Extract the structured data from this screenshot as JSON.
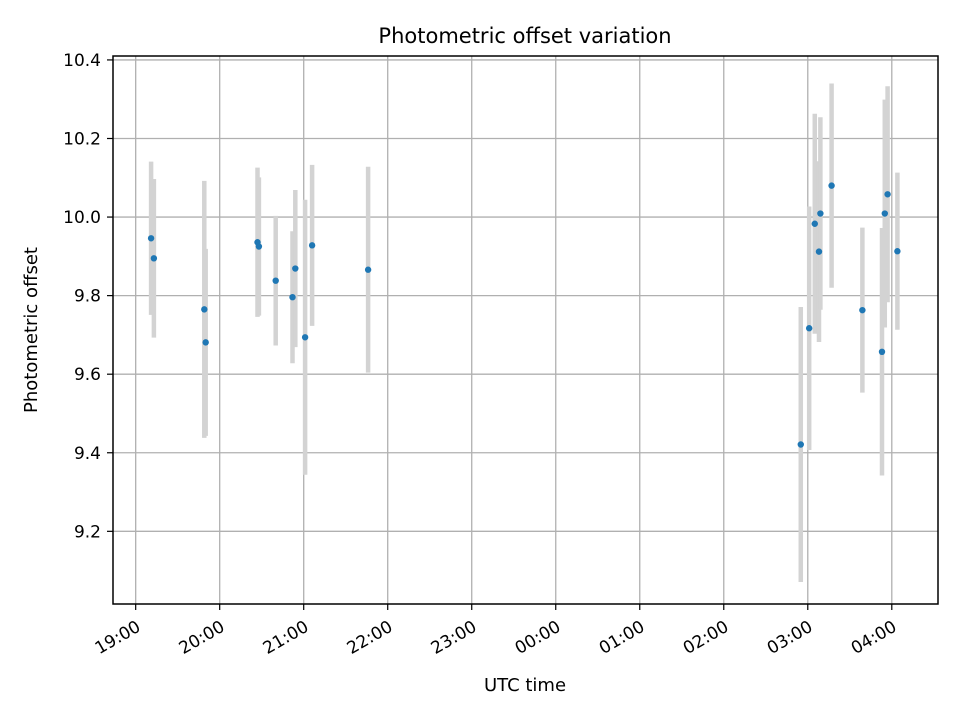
{
  "chart_data": {
    "type": "scatter",
    "title": "Photometric offset variation",
    "xlabel": "UTC time",
    "ylabel": "Photometric offset",
    "x_ticks": [
      "19:00",
      "20:00",
      "21:00",
      "22:00",
      "23:00",
      "00:00",
      "01:00",
      "02:00",
      "03:00",
      "04:00"
    ],
    "y_ticks": [
      "9.2",
      "9.4",
      "9.6",
      "9.8",
      "10.0",
      "10.2",
      "10.4"
    ],
    "x_tick_hours": [
      0,
      1,
      2,
      3,
      4,
      5,
      6,
      7,
      8,
      9
    ],
    "y_tick_values": [
      9.2,
      9.4,
      9.6,
      9.8,
      10.0,
      10.2,
      10.4
    ],
    "xlim_hours": [
      -0.27,
      9.55
    ],
    "ylim": [
      9.015,
      10.41
    ],
    "grid": true,
    "series": [
      {
        "marker_color": "#1f77b4",
        "errorbar_color": "#d3d3d3",
        "points": [
          {
            "t": "19:11",
            "y": 9.946,
            "err": 0.195
          },
          {
            "t": "19:13",
            "y": 9.895,
            "err": 0.202
          },
          {
            "t": "19:49",
            "y": 9.765,
            "err": 0.327
          },
          {
            "t": "19:50",
            "y": 9.681,
            "err": 0.238
          },
          {
            "t": "20:27",
            "y": 9.936,
            "err": 0.19
          },
          {
            "t": "20:28",
            "y": 9.925,
            "err": 0.176
          },
          {
            "t": "20:40",
            "y": 9.838,
            "err": 0.165
          },
          {
            "t": "20:52",
            "y": 9.796,
            "err": 0.168
          },
          {
            "t": "20:54",
            "y": 9.869,
            "err": 0.2
          },
          {
            "t": "21:01",
            "y": 9.694,
            "err": 0.35
          },
          {
            "t": "21:06",
            "y": 9.928,
            "err": 0.205
          },
          {
            "t": "21:46",
            "y": 9.866,
            "err": 0.262
          },
          {
            "t": "02:55",
            "y": 9.421,
            "err": 0.35
          },
          {
            "t": "03:01",
            "y": 9.717,
            "err": 0.31
          },
          {
            "t": "03:05",
            "y": 9.983,
            "err": 0.28
          },
          {
            "t": "03:08",
            "y": 9.912,
            "err": 0.23
          },
          {
            "t": "03:09",
            "y": 10.009,
            "err": 0.245
          },
          {
            "t": "03:17",
            "y": 10.08,
            "err": 0.26
          },
          {
            "t": "03:39",
            "y": 9.763,
            "err": 0.21
          },
          {
            "t": "03:53",
            "y": 9.657,
            "err": 0.315
          },
          {
            "t": "03:55",
            "y": 10.009,
            "err": 0.29
          },
          {
            "t": "03:57",
            "y": 10.058,
            "err": 0.275
          },
          {
            "t": "04:04",
            "y": 9.913,
            "err": 0.2
          }
        ]
      }
    ]
  }
}
